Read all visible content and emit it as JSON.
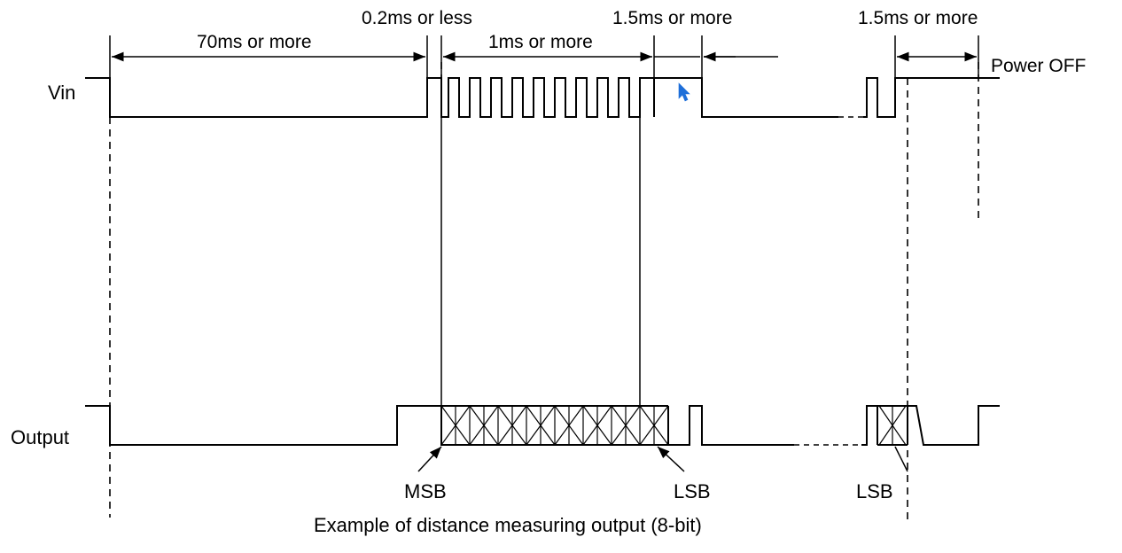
{
  "signals": {
    "vin_label": "Vin",
    "output_label": "Output"
  },
  "timing": {
    "startup": "70ms or more",
    "start_pulse": "0.2ms or less",
    "clock_period": "1ms or more",
    "end_gap": "1.5ms or more",
    "poweroff_gap": "1.5ms or more",
    "power_off": "Power OFF"
  },
  "bits": {
    "msb": "MSB",
    "lsb_first": "LSB",
    "lsb_second": "LSB"
  },
  "caption": "Example of distance measuring output (8-bit)",
  "colors": {
    "line": "#000000",
    "cursor": "#1e6fd9"
  },
  "icons": {
    "cursor": "mouse-pointer-icon"
  }
}
